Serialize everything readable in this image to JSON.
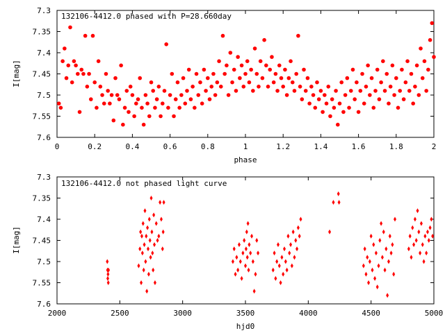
{
  "chart_data": [
    {
      "type": "scatter",
      "title": "132106-4412.0 phased with P=28.660day",
      "xlabel": "phase",
      "ylabel": "I[mag]",
      "xlim": [
        0,
        2
      ],
      "ylim": [
        7.6,
        7.3
      ],
      "y_inverted": true,
      "grid": false,
      "marker": "filled-circle",
      "color": "#ff0000",
      "xticks": [
        "0",
        "0.2",
        "0.4",
        "0.6",
        "0.8",
        "1",
        "1.2",
        "1.4",
        "1.6",
        "1.8",
        "2"
      ],
      "yticks": [
        "7.3",
        "7.35",
        "7.4",
        "7.45",
        "7.5",
        "7.55",
        "7.6"
      ],
      "points": [
        [
          0.01,
          7.52
        ],
        [
          0.02,
          7.53
        ],
        [
          0.03,
          7.42
        ],
        [
          0.04,
          7.39
        ],
        [
          0.05,
          7.46
        ],
        [
          0.06,
          7.43
        ],
        [
          0.07,
          7.34
        ],
        [
          0.08,
          7.47
        ],
        [
          0.09,
          7.42
        ],
        [
          0.1,
          7.43
        ],
        [
          0.11,
          7.45
        ],
        [
          0.12,
          7.54
        ],
        [
          0.13,
          7.44
        ],
        [
          0.14,
          7.45
        ],
        [
          0.15,
          7.36
        ],
        [
          0.16,
          7.48
        ],
        [
          0.17,
          7.45
        ],
        [
          0.18,
          7.51
        ],
        [
          0.19,
          7.36
        ],
        [
          0.2,
          7.47
        ],
        [
          0.21,
          7.53
        ],
        [
          0.22,
          7.42
        ],
        [
          0.23,
          7.48
        ],
        [
          0.24,
          7.5
        ],
        [
          0.25,
          7.52
        ],
        [
          0.26,
          7.45
        ],
        [
          0.27,
          7.49
        ],
        [
          0.28,
          7.52
        ],
        [
          0.29,
          7.5
        ],
        [
          0.3,
          7.56
        ],
        [
          0.31,
          7.46
        ],
        [
          0.32,
          7.5
        ],
        [
          0.33,
          7.51
        ],
        [
          0.34,
          7.43
        ],
        [
          0.35,
          7.57
        ],
        [
          0.36,
          7.53
        ],
        [
          0.37,
          7.49
        ],
        [
          0.38,
          7.54
        ],
        [
          0.39,
          7.48
        ],
        [
          0.4,
          7.5
        ],
        [
          0.41,
          7.55
        ],
        [
          0.42,
          7.52
        ],
        [
          0.43,
          7.51
        ],
        [
          0.44,
          7.46
        ],
        [
          0.45,
          7.53
        ],
        [
          0.46,
          7.57
        ],
        [
          0.47,
          7.5
        ],
        [
          0.48,
          7.52
        ],
        [
          0.49,
          7.55
        ],
        [
          0.5,
          7.47
        ],
        [
          0.51,
          7.49
        ],
        [
          0.52,
          7.53
        ],
        [
          0.53,
          7.51
        ],
        [
          0.54,
          7.48
        ],
        [
          0.55,
          7.55
        ],
        [
          0.56,
          7.52
        ],
        [
          0.57,
          7.49
        ],
        [
          0.58,
          7.38
        ],
        [
          0.59,
          7.53
        ],
        [
          0.6,
          7.5
        ],
        [
          0.61,
          7.45
        ],
        [
          0.62,
          7.55
        ],
        [
          0.63,
          7.51
        ],
        [
          0.64,
          7.47
        ],
        [
          0.65,
          7.53
        ],
        [
          0.66,
          7.5
        ],
        [
          0.67,
          7.46
        ],
        [
          0.68,
          7.52
        ],
        [
          0.69,
          7.49
        ],
        [
          0.7,
          7.44
        ],
        [
          0.71,
          7.51
        ],
        [
          0.72,
          7.48
        ],
        [
          0.73,
          7.53
        ],
        [
          0.74,
          7.45
        ],
        [
          0.75,
          7.5
        ],
        [
          0.76,
          7.47
        ],
        [
          0.77,
          7.52
        ],
        [
          0.78,
          7.44
        ],
        [
          0.79,
          7.49
        ],
        [
          0.8,
          7.46
        ],
        [
          0.81,
          7.51
        ],
        [
          0.82,
          7.48
        ],
        [
          0.83,
          7.45
        ],
        [
          0.84,
          7.5
        ],
        [
          0.85,
          7.47
        ],
        [
          0.86,
          7.42
        ],
        [
          0.87,
          7.48
        ],
        [
          0.88,
          7.36
        ],
        [
          0.89,
          7.45
        ],
        [
          0.9,
          7.43
        ],
        [
          0.91,
          7.5
        ],
        [
          0.92,
          7.4
        ],
        [
          0.93,
          7.47
        ],
        [
          0.94,
          7.44
        ],
        [
          0.95,
          7.49
        ],
        [
          0.96,
          7.41
        ],
        [
          0.97,
          7.46
        ],
        [
          0.98,
          7.43
        ],
        [
          0.99,
          7.48
        ],
        [
          1.0,
          7.45
        ],
        [
          1.01,
          7.42
        ],
        [
          1.02,
          7.47
        ],
        [
          1.03,
          7.44
        ],
        [
          1.04,
          7.49
        ],
        [
          1.05,
          7.39
        ],
        [
          1.06,
          7.45
        ],
        [
          1.07,
          7.48
        ],
        [
          1.08,
          7.42
        ],
        [
          1.09,
          7.46
        ],
        [
          1.1,
          7.37
        ],
        [
          1.11,
          7.43
        ],
        [
          1.12,
          7.48
        ],
        [
          1.13,
          7.44
        ],
        [
          1.14,
          7.41
        ],
        [
          1.15,
          7.47
        ],
        [
          1.16,
          7.45
        ],
        [
          1.17,
          7.49
        ],
        [
          1.18,
          7.43
        ],
        [
          1.19,
          7.46
        ],
        [
          1.2,
          7.48
        ],
        [
          1.21,
          7.44
        ],
        [
          1.22,
          7.5
        ],
        [
          1.23,
          7.46
        ],
        [
          1.24,
          7.42
        ],
        [
          1.25,
          7.47
        ],
        [
          1.26,
          7.49
        ],
        [
          1.27,
          7.45
        ],
        [
          1.28,
          7.36
        ],
        [
          1.29,
          7.48
        ],
        [
          1.3,
          7.51
        ],
        [
          1.31,
          7.44
        ],
        [
          1.32,
          7.49
        ],
        [
          1.33,
          7.46
        ],
        [
          1.34,
          7.52
        ],
        [
          1.35,
          7.48
        ],
        [
          1.36,
          7.5
        ],
        [
          1.37,
          7.53
        ],
        [
          1.38,
          7.47
        ],
        [
          1.39,
          7.51
        ],
        [
          1.4,
          7.49
        ],
        [
          1.41,
          7.54
        ],
        [
          1.42,
          7.5
        ],
        [
          1.43,
          7.52
        ],
        [
          1.44,
          7.48
        ],
        [
          1.45,
          7.55
        ],
        [
          1.46,
          7.51
        ],
        [
          1.47,
          7.53
        ],
        [
          1.48,
          7.49
        ],
        [
          1.49,
          7.57
        ],
        [
          1.5,
          7.52
        ],
        [
          1.51,
          7.47
        ],
        [
          1.52,
          7.54
        ],
        [
          1.53,
          7.5
        ],
        [
          1.54,
          7.46
        ],
        [
          1.55,
          7.53
        ],
        [
          1.56,
          7.49
        ],
        [
          1.57,
          7.44
        ],
        [
          1.58,
          7.51
        ],
        [
          1.59,
          7.47
        ],
        [
          1.6,
          7.54
        ],
        [
          1.61,
          7.49
        ],
        [
          1.62,
          7.45
        ],
        [
          1.63,
          7.52
        ],
        [
          1.64,
          7.48
        ],
        [
          1.65,
          7.43
        ],
        [
          1.66,
          7.5
        ],
        [
          1.67,
          7.46
        ],
        [
          1.68,
          7.53
        ],
        [
          1.69,
          7.49
        ],
        [
          1.7,
          7.44
        ],
        [
          1.71,
          7.51
        ],
        [
          1.72,
          7.47
        ],
        [
          1.73,
          7.42
        ],
        [
          1.74,
          7.49
        ],
        [
          1.75,
          7.45
        ],
        [
          1.76,
          7.52
        ],
        [
          1.77,
          7.48
        ],
        [
          1.78,
          7.43
        ],
        [
          1.79,
          7.5
        ],
        [
          1.8,
          7.46
        ],
        [
          1.81,
          7.53
        ],
        [
          1.82,
          7.49
        ],
        [
          1.83,
          7.44
        ],
        [
          1.84,
          7.51
        ],
        [
          1.85,
          7.47
        ],
        [
          1.86,
          7.42
        ],
        [
          1.87,
          7.49
        ],
        [
          1.88,
          7.45
        ],
        [
          1.89,
          7.52
        ],
        [
          1.9,
          7.48
        ],
        [
          1.91,
          7.43
        ],
        [
          1.92,
          7.5
        ],
        [
          1.93,
          7.39
        ],
        [
          1.94,
          7.46
        ],
        [
          1.95,
          7.42
        ],
        [
          1.96,
          7.49
        ],
        [
          1.97,
          7.44
        ],
        [
          1.98,
          7.37
        ],
        [
          1.99,
          7.33
        ],
        [
          2.0,
          7.41
        ]
      ]
    },
    {
      "type": "scatter",
      "title": "132106-4412.0 not phased light curve",
      "xlabel": "hjd0",
      "ylabel": "I[mag]",
      "xlim": [
        2000,
        5000
      ],
      "ylim": [
        7.6,
        7.3
      ],
      "y_inverted": true,
      "grid": false,
      "marker": "diamond",
      "color": "#ff0000",
      "xticks": [
        "2000",
        "2500",
        "3000",
        "3500",
        "4000",
        "4500",
        "5000"
      ],
      "yticks": [
        "7.3",
        "7.35",
        "7.4",
        "7.45",
        "7.5",
        "7.55",
        "7.6"
      ],
      "points": [
        [
          2400,
          7.5
        ],
        [
          2402,
          7.52
        ],
        [
          2404,
          7.54
        ],
        [
          2406,
          7.53
        ],
        [
          2408,
          7.55
        ],
        [
          2410,
          7.52
        ],
        [
          2650,
          7.51
        ],
        [
          2660,
          7.47
        ],
        [
          2665,
          7.43
        ],
        [
          2670,
          7.55
        ],
        [
          2675,
          7.44
        ],
        [
          2680,
          7.48
        ],
        [
          2685,
          7.41
        ],
        [
          2690,
          7.52
        ],
        [
          2695,
          7.46
        ],
        [
          2700,
          7.38
        ],
        [
          2705,
          7.5
        ],
        [
          2710,
          7.44
        ],
        [
          2715,
          7.57
        ],
        [
          2720,
          7.42
        ],
        [
          2725,
          7.47
        ],
        [
          2730,
          7.53
        ],
        [
          2735,
          7.4
        ],
        [
          2740,
          7.45
        ],
        [
          2745,
          7.49
        ],
        [
          2750,
          7.35
        ],
        [
          2755,
          7.43
        ],
        [
          2760,
          7.48
        ],
        [
          2765,
          7.52
        ],
        [
          2770,
          7.39
        ],
        [
          2775,
          7.46
        ],
        [
          2780,
          7.55
        ],
        [
          2790,
          7.41
        ],
        [
          2800,
          7.45
        ],
        [
          2810,
          7.44
        ],
        [
          2820,
          7.36
        ],
        [
          2830,
          7.4
        ],
        [
          2840,
          7.47
        ],
        [
          2845,
          7.43
        ],
        [
          2850,
          7.36
        ],
        [
          3400,
          7.5
        ],
        [
          3410,
          7.47
        ],
        [
          3420,
          7.53
        ],
        [
          3430,
          7.49
        ],
        [
          3440,
          7.52
        ],
        [
          3450,
          7.46
        ],
        [
          3460,
          7.5
        ],
        [
          3470,
          7.54
        ],
        [
          3480,
          7.48
        ],
        [
          3490,
          7.45
        ],
        [
          3500,
          7.51
        ],
        [
          3505,
          7.47
        ],
        [
          3510,
          7.43
        ],
        [
          3515,
          7.49
        ],
        [
          3520,
          7.41
        ],
        [
          3525,
          7.52
        ],
        [
          3530,
          7.46
        ],
        [
          3540,
          7.48
        ],
        [
          3550,
          7.44
        ],
        [
          3560,
          7.5
        ],
        [
          3570,
          7.57
        ],
        [
          3580,
          7.53
        ],
        [
          3590,
          7.45
        ],
        [
          3600,
          7.48
        ],
        [
          3720,
          7.52
        ],
        [
          3730,
          7.48
        ],
        [
          3740,
          7.54
        ],
        [
          3750,
          7.5
        ],
        [
          3760,
          7.46
        ],
        [
          3770,
          7.51
        ],
        [
          3780,
          7.55
        ],
        [
          3790,
          7.49
        ],
        [
          3800,
          7.53
        ],
        [
          3810,
          7.47
        ],
        [
          3820,
          7.5
        ],
        [
          3830,
          7.52
        ],
        [
          3840,
          7.44
        ],
        [
          3850,
          7.48
        ],
        [
          3860,
          7.46
        ],
        [
          3870,
          7.51
        ],
        [
          3880,
          7.43
        ],
        [
          3890,
          7.49
        ],
        [
          3900,
          7.45
        ],
        [
          3910,
          7.47
        ],
        [
          3920,
          7.42
        ],
        [
          3930,
          7.44
        ],
        [
          3940,
          7.4
        ],
        [
          4170,
          7.43
        ],
        [
          4200,
          7.36
        ],
        [
          4240,
          7.34
        ],
        [
          4245,
          7.36
        ],
        [
          4440,
          7.51
        ],
        [
          4450,
          7.47
        ],
        [
          4460,
          7.53
        ],
        [
          4470,
          7.49
        ],
        [
          4480,
          7.55
        ],
        [
          4490,
          7.5
        ],
        [
          4500,
          7.44
        ],
        [
          4510,
          7.52
        ],
        [
          4520,
          7.46
        ],
        [
          4530,
          7.54
        ],
        [
          4540,
          7.48
        ],
        [
          4550,
          7.56
        ],
        [
          4560,
          7.51
        ],
        [
          4570,
          7.45
        ],
        [
          4580,
          7.41
        ],
        [
          4590,
          7.49
        ],
        [
          4600,
          7.43
        ],
        [
          4610,
          7.52
        ],
        [
          4620,
          7.47
        ],
        [
          4630,
          7.58
        ],
        [
          4640,
          7.5
        ],
        [
          4650,
          7.44
        ],
        [
          4660,
          7.48
        ],
        [
          4670,
          7.46
        ],
        [
          4680,
          7.53
        ],
        [
          4690,
          7.4
        ],
        [
          4800,
          7.47
        ],
        [
          4810,
          7.44
        ],
        [
          4820,
          7.49
        ],
        [
          4830,
          7.42
        ],
        [
          4840,
          7.46
        ],
        [
          4850,
          7.4
        ],
        [
          4860,
          7.45
        ],
        [
          4870,
          7.38
        ],
        [
          4880,
          7.43
        ],
        [
          4890,
          7.48
        ],
        [
          4900,
          7.41
        ],
        [
          4910,
          7.46
        ],
        [
          4920,
          7.5
        ],
        [
          4930,
          7.44
        ],
        [
          4940,
          7.48
        ],
        [
          4950,
          7.43
        ],
        [
          4960,
          7.45
        ],
        [
          4970,
          7.42
        ],
        [
          4980,
          7.4
        ],
        [
          4990,
          7.44
        ]
      ]
    }
  ]
}
